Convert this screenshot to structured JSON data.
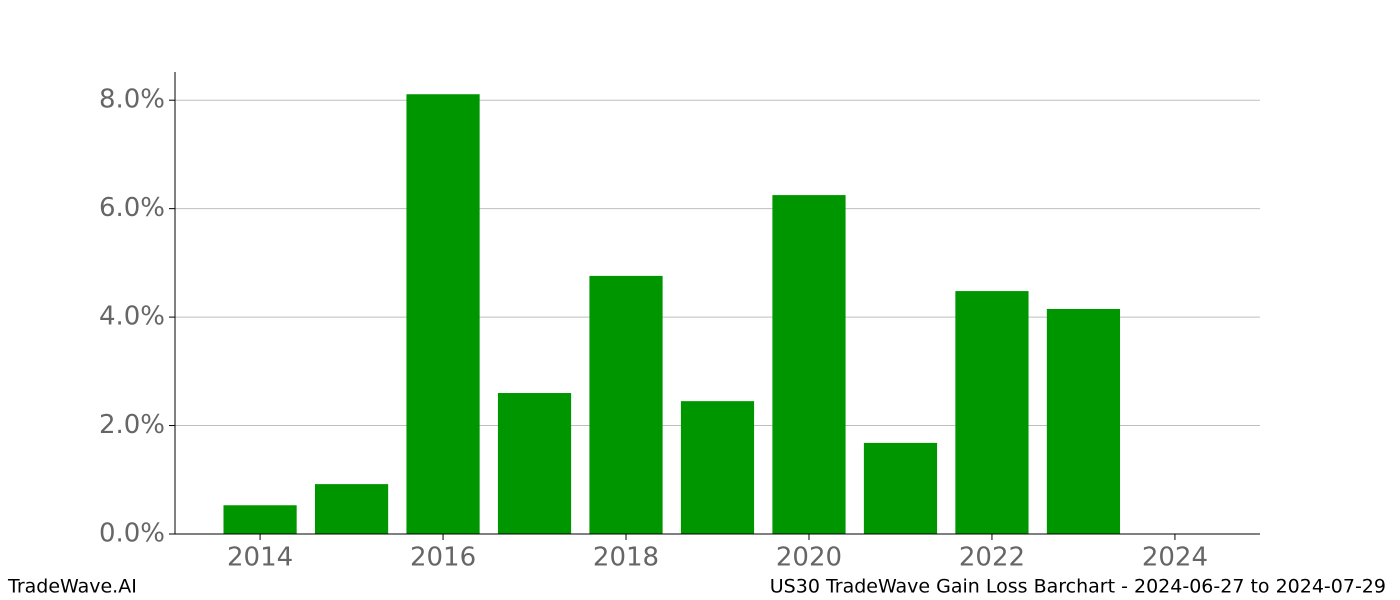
{
  "chart_data": {
    "type": "bar",
    "title": "US30 TradeWave Gain Loss Barchart - 2024-06-27 to 2024-07-29",
    "watermark": "TradeWave.AI",
    "x": [
      2014,
      2015,
      2016,
      2017,
      2018,
      2019,
      2020,
      2021,
      2022,
      2023
    ],
    "values": [
      0.53,
      0.92,
      8.11,
      2.6,
      4.76,
      2.45,
      6.25,
      1.68,
      4.48,
      4.15
    ],
    "color": "#009600",
    "xlim": [
      2013.07,
      2024.93
    ],
    "xticks": [
      2014,
      2016,
      2018,
      2020,
      2022,
      2024
    ],
    "ylim": [
      0,
      8.52
    ],
    "yticks": [
      {
        "value": 0,
        "label": "0.0%"
      },
      {
        "value": 2,
        "label": "2.0%"
      },
      {
        "value": 4,
        "label": "4.0%"
      },
      {
        "value": 6,
        "label": "6.0%"
      },
      {
        "value": 8,
        "label": "8.0%"
      }
    ],
    "grid": true
  }
}
